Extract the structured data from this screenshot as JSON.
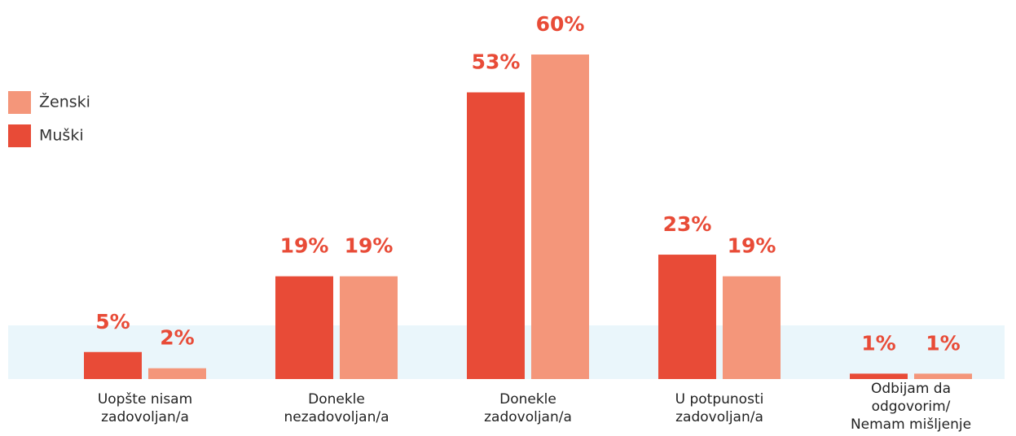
{
  "chart_data": {
    "type": "bar",
    "categories": [
      "Uopšte nisam\nzadovoljan/a",
      "Donekle\nnezadovoljan/a",
      "Donekle\nzadovoljan/a",
      "U potpunosti\nzadovoljan/a",
      "Odbijam da\nodgovorim/\nNemam mišljenje"
    ],
    "series": [
      {
        "name": "Muški",
        "color": "#e84b37",
        "values": [
          5,
          19,
          53,
          23,
          1
        ],
        "value_labels": [
          "5%",
          "19%",
          "53%",
          "23%",
          "1%"
        ]
      },
      {
        "name": "Ženski",
        "color": "#f4967a",
        "values": [
          2,
          19,
          60,
          19,
          1
        ],
        "value_labels": [
          "2%",
          "19%",
          "60%",
          "19%",
          "1%"
        ]
      }
    ],
    "legend": "left"
  }
}
